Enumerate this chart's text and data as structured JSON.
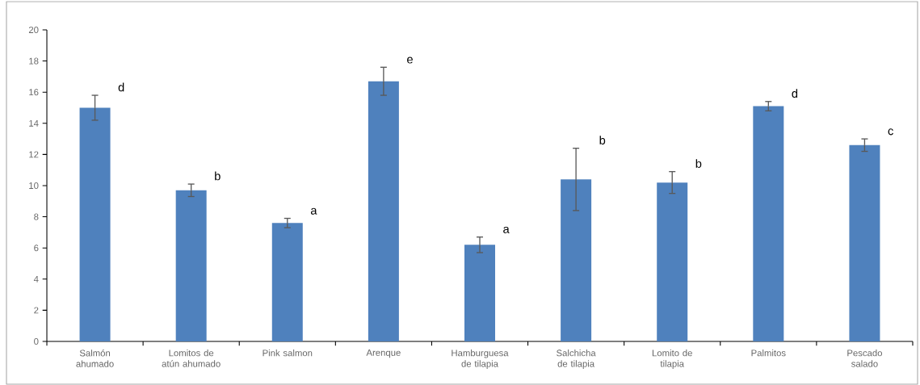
{
  "chart_data": {
    "type": "bar",
    "categories": [
      "Salmón ahumado",
      "Lomitos de atún ahumado",
      "Pink salmon",
      "Arenque",
      "Hamburguesa de tilapia",
      "Salchicha de tilapia",
      "Lomito de tilapia",
      "Palmitos",
      "Pescado salado"
    ],
    "values": [
      15.0,
      9.7,
      7.6,
      16.7,
      6.2,
      10.4,
      10.2,
      15.1,
      12.6
    ],
    "errors": [
      0.8,
      0.4,
      0.3,
      0.9,
      0.5,
      2.0,
      0.7,
      0.3,
      0.4
    ],
    "color": "#4f81bd",
    "ylim": [
      0,
      20
    ],
    "yticks": [
      0,
      2,
      4,
      6,
      8,
      10,
      12,
      14,
      16,
      18,
      20
    ],
    "grid": false,
    "annotations": [
      "d",
      "b",
      "a",
      "e",
      "a",
      "b",
      "b",
      "d",
      "c"
    ]
  }
}
